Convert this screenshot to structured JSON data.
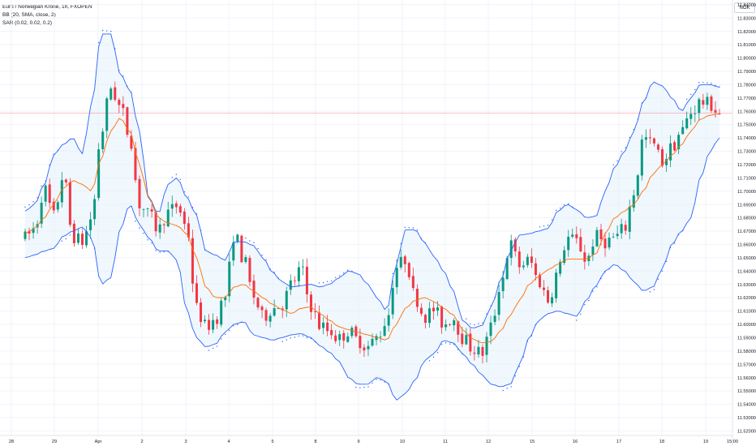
{
  "legend": {
    "symbol": "Euro / Norwegian Krone, 1h, FXOPEN",
    "bb": "BB (20, SMA, close, 2)",
    "sar": "SAR (0.02, 0.02, 0.2)"
  },
  "currency": "NOK",
  "colors": {
    "up": "#089981",
    "down": "#f23645",
    "band": "#2962ff",
    "band_fill": "#e3f0fb",
    "basis": "#ff6d00",
    "sar": "#2962ff",
    "price_line": "#f23645"
  },
  "chart_data": {
    "type": "candlestick",
    "title": "Euro / Norwegian Krone, 1h, FXOPEN",
    "y_ticks": [
      "11.84000",
      "11.83000",
      "11.82000",
      "11.81000",
      "11.80000",
      "11.79000",
      "11.78000",
      "11.77000",
      "11.76000",
      "11.75000",
      "11.74000",
      "11.73000",
      "11.72000",
      "11.71000",
      "11.70000",
      "11.69000",
      "11.68000",
      "11.67000",
      "11.66000",
      "11.65000",
      "11.64000",
      "11.63000",
      "11.62000",
      "11.61000",
      "11.60000",
      "11.59000",
      "11.58000",
      "11.57000",
      "11.56000",
      "11.55000",
      "11.54000",
      "11.53000",
      "11.52000"
    ],
    "ylim": [
      11.5165,
      11.8435
    ],
    "x_ticks": [
      "28",
      "29",
      "Apr",
      "2",
      "3",
      "4",
      "5",
      "8",
      "9",
      "10",
      "11",
      "12",
      "15",
      "16",
      "17",
      "18",
      "19",
      "15:00"
    ],
    "last_price": 11.7587,
    "series": [
      {
        "name": "Price",
        "kind": "ohlc",
        "waypoints": [
          11.665,
          11.672,
          11.702,
          11.681,
          11.712,
          11.666,
          11.662,
          11.68,
          11.744,
          11.778,
          11.763,
          11.741,
          11.69,
          11.682,
          11.671,
          11.684,
          11.689,
          11.672,
          11.612,
          11.598,
          11.604,
          11.621,
          11.668,
          11.648,
          11.621,
          11.605,
          11.612,
          11.615,
          11.63,
          11.642,
          11.614,
          11.599,
          11.595,
          11.589,
          11.595,
          11.588,
          11.583,
          11.59,
          11.603,
          11.643,
          11.649,
          11.62,
          11.606,
          11.611,
          11.6,
          11.605,
          11.59,
          11.582,
          11.578,
          11.598,
          11.631,
          11.66,
          11.644,
          11.648,
          11.632,
          11.618,
          11.639,
          11.665,
          11.662,
          11.648,
          11.666,
          11.662,
          11.665,
          11.672,
          11.699,
          11.74,
          11.735,
          11.722,
          11.733,
          11.745,
          11.759,
          11.767,
          11.765,
          11.758
        ]
      },
      {
        "name": "BB Upper",
        "kind": "line",
        "waypoints": [
          11.685,
          11.69,
          11.705,
          11.727,
          11.735,
          11.74,
          11.728,
          11.765,
          11.818,
          11.818,
          11.788,
          11.776,
          11.745,
          11.695,
          11.683,
          11.705,
          11.71,
          11.695,
          11.682,
          11.655,
          11.652,
          11.648,
          11.662,
          11.662,
          11.659,
          11.65,
          11.639,
          11.632,
          11.628,
          11.629,
          11.63,
          11.628,
          11.63,
          11.635,
          11.64,
          11.638,
          11.63,
          11.62,
          11.61,
          11.645,
          11.671,
          11.671,
          11.661,
          11.651,
          11.64,
          11.625,
          11.603,
          11.597,
          11.599,
          11.613,
          11.633,
          11.655,
          11.667,
          11.668,
          11.67,
          11.672,
          11.685,
          11.69,
          11.686,
          11.68,
          11.681,
          11.7,
          11.718,
          11.73,
          11.745,
          11.767,
          11.782,
          11.779,
          11.77,
          11.76,
          11.77,
          11.78,
          11.78,
          11.778
        ]
      },
      {
        "name": "BB Lower",
        "kind": "line",
        "waypoints": [
          11.65,
          11.652,
          11.655,
          11.657,
          11.666,
          11.67,
          11.673,
          11.665,
          11.63,
          11.635,
          11.671,
          11.69,
          11.675,
          11.665,
          11.655,
          11.655,
          11.648,
          11.61,
          11.59,
          11.583,
          11.585,
          11.594,
          11.6,
          11.602,
          11.592,
          11.59,
          11.588,
          11.59,
          11.592,
          11.593,
          11.59,
          11.584,
          11.579,
          11.572,
          11.56,
          11.555,
          11.555,
          11.56,
          11.557,
          11.543,
          11.548,
          11.558,
          11.573,
          11.578,
          11.588,
          11.586,
          11.578,
          11.57,
          11.562,
          11.555,
          11.553,
          11.555,
          11.57,
          11.59,
          11.603,
          11.608,
          11.61,
          11.608,
          11.606,
          11.618,
          11.629,
          11.64,
          11.645,
          11.64,
          11.632,
          11.625,
          11.628,
          11.642,
          11.66,
          11.67,
          11.68,
          11.71,
          11.73,
          11.74
        ]
      },
      {
        "name": "BB Basis",
        "kind": "line",
        "waypoints": [
          11.668,
          11.672,
          11.68,
          11.69,
          11.702,
          11.708,
          11.705,
          11.7,
          11.725,
          11.745,
          11.755,
          11.745,
          11.72,
          11.695,
          11.68,
          11.676,
          11.674,
          11.668,
          11.65,
          11.628,
          11.62,
          11.62,
          11.628,
          11.63,
          11.625,
          11.62,
          11.615,
          11.611,
          11.608,
          11.612,
          11.613,
          11.608,
          11.603,
          11.598,
          11.596,
          11.594,
          11.592,
          11.59,
          11.588,
          11.6,
          11.612,
          11.618,
          11.62,
          11.617,
          11.612,
          11.607,
          11.596,
          11.589,
          11.586,
          11.587,
          11.595,
          11.607,
          11.618,
          11.63,
          11.636,
          11.641,
          11.645,
          11.649,
          11.649,
          11.649,
          11.653,
          11.668,
          11.68,
          11.685,
          11.69,
          11.7,
          11.713,
          11.72,
          11.727,
          11.735,
          11.745,
          11.754,
          11.757,
          11.758
        ]
      }
    ]
  }
}
